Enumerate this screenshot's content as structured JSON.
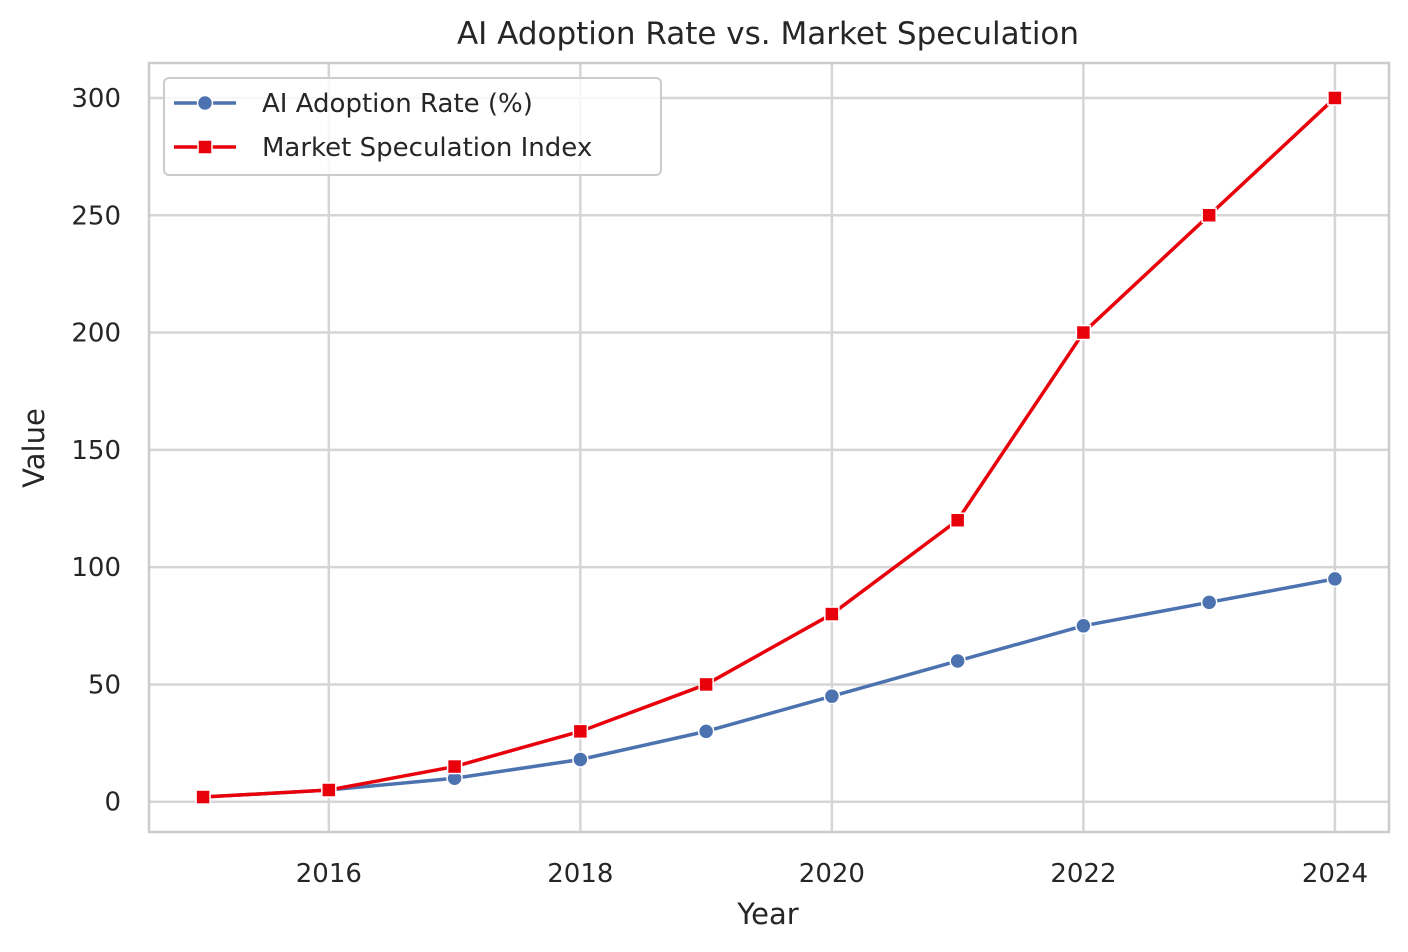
{
  "chart_data": {
    "type": "line",
    "title": "AI Adoption Rate vs. Market Speculation",
    "xlabel": "Year",
    "ylabel": "Value",
    "x": [
      2015,
      2016,
      2017,
      2018,
      2019,
      2020,
      2021,
      2022,
      2023,
      2024
    ],
    "xlim": [
      2014.57,
      2024.43
    ],
    "ylim": [
      -12.9,
      314.9
    ],
    "xticks": [
      2016,
      2018,
      2020,
      2022,
      2024
    ],
    "yticks": [
      0,
      50,
      100,
      150,
      200,
      250,
      300
    ],
    "grid": true,
    "legend_position": "top-left",
    "series": [
      {
        "name": "AI Adoption Rate (%)",
        "values": [
          2,
          5,
          10,
          18,
          30,
          45,
          60,
          75,
          85,
          95
        ],
        "color": "#4c72b0",
        "marker": "circle"
      },
      {
        "name": "Market Speculation Index",
        "values": [
          2,
          5,
          15,
          30,
          50,
          80,
          120,
          200,
          250,
          300
        ],
        "color": "#e8000b",
        "marker": "square"
      }
    ]
  }
}
